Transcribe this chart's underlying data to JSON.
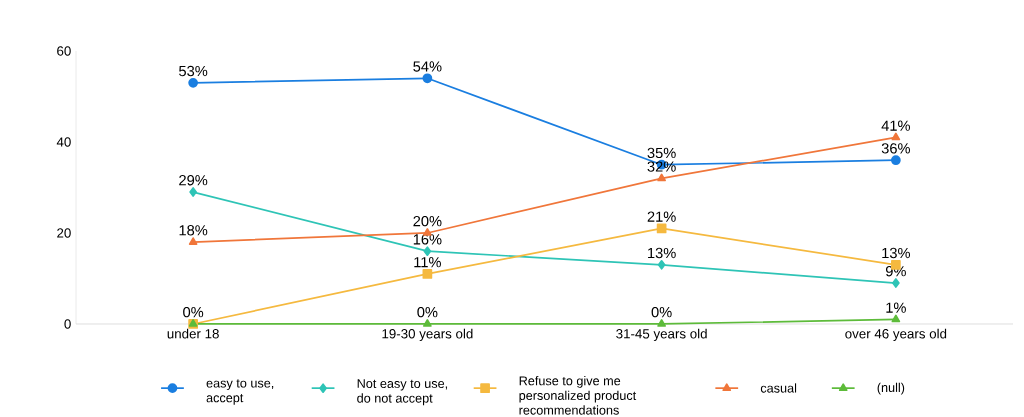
{
  "chart_data": {
    "type": "line",
    "categories": [
      "under 18",
      "19-30 years old",
      "31-45 years old",
      "over 46 years old"
    ],
    "ylim": [
      0,
      60
    ],
    "yticks": [
      0,
      20,
      40,
      60
    ],
    "grid": false,
    "legend": "bottom",
    "series": [
      {
        "name": "easy to use, accept",
        "color": "#1a7ee0",
        "marker": "circle",
        "values": [
          53,
          54,
          35,
          36
        ],
        "value_labels": [
          "53%",
          "54%",
          "35%",
          "36%"
        ]
      },
      {
        "name": "Not easy to use, do not accept",
        "color": "#2ec4b6",
        "marker": "diamond",
        "values": [
          29,
          16,
          13,
          9
        ],
        "value_labels": [
          "29%",
          "16%",
          "13%",
          "9%"
        ]
      },
      {
        "name": "Refuse to give me personalized product recommendations",
        "color": "#f5b93f",
        "marker": "square",
        "values": [
          0,
          11,
          21,
          13
        ],
        "value_labels": [
          null,
          "11%",
          "21%",
          "13%"
        ]
      },
      {
        "name": "casual",
        "color": "#f0763a",
        "marker": "triangle",
        "values": [
          18,
          20,
          32,
          41
        ],
        "value_labels": [
          "18%",
          "20%",
          "32%",
          "41%"
        ]
      },
      {
        "name": "(null)",
        "color": "#5dbb3a",
        "marker": "triangle down",
        "values": [
          0,
          0,
          0,
          1
        ],
        "value_labels": [
          "0%",
          "0%",
          "0%",
          "1%"
        ]
      }
    ]
  }
}
